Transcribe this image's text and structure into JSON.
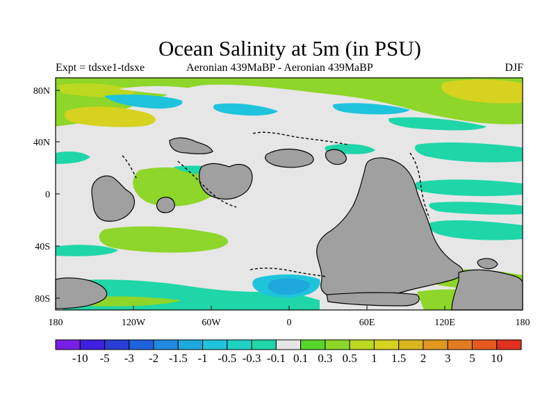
{
  "title": "Ocean Salinity at 5m (in PSU)",
  "subtitle_left": "Expt = tdsxe1-tdsxe",
  "subtitle_center": "Aeronian 439MaBP - Aeronian 439MaBP",
  "subtitle_right": "DJF",
  "axes": {
    "x_ticks": [
      "180",
      "120W",
      "60W",
      "0",
      "60E",
      "120E",
      "180"
    ],
    "y_ticks": [
      "80N",
      "40N",
      "0",
      "40S",
      "80S"
    ]
  },
  "colorbar": {
    "colors": [
      "#7a1fe6",
      "#3f1fe0",
      "#2a3ed6",
      "#1f62dc",
      "#1f8ae0",
      "#1fa8dc",
      "#1fc4dc",
      "#1fd2c4",
      "#1fd6a8",
      "#e6e6e6",
      "#58d62a",
      "#8ed62a",
      "#bcd81f",
      "#d6d21f",
      "#dcb61f",
      "#e0981f",
      "#e27c1f",
      "#e65a1f",
      "#e0301f"
    ],
    "labels": [
      "-10",
      "-5",
      "-3",
      "-2",
      "-1.5",
      "-1",
      "-0.5",
      "-0.3",
      "-0.1",
      "0.1",
      "0.3",
      "0.5",
      "1",
      "1.5",
      "2",
      "3",
      "5",
      "10"
    ]
  },
  "colors": {
    "land": "#a0a0a0",
    "neutral": "#e6e6e6",
    "light_green": "#8ed62a",
    "yellow_green": "#bcd81f",
    "yellow": "#d6d21f",
    "aqua": "#1fd6a8",
    "cyan": "#1fc4dc",
    "blue": "#1fa8dc"
  }
}
